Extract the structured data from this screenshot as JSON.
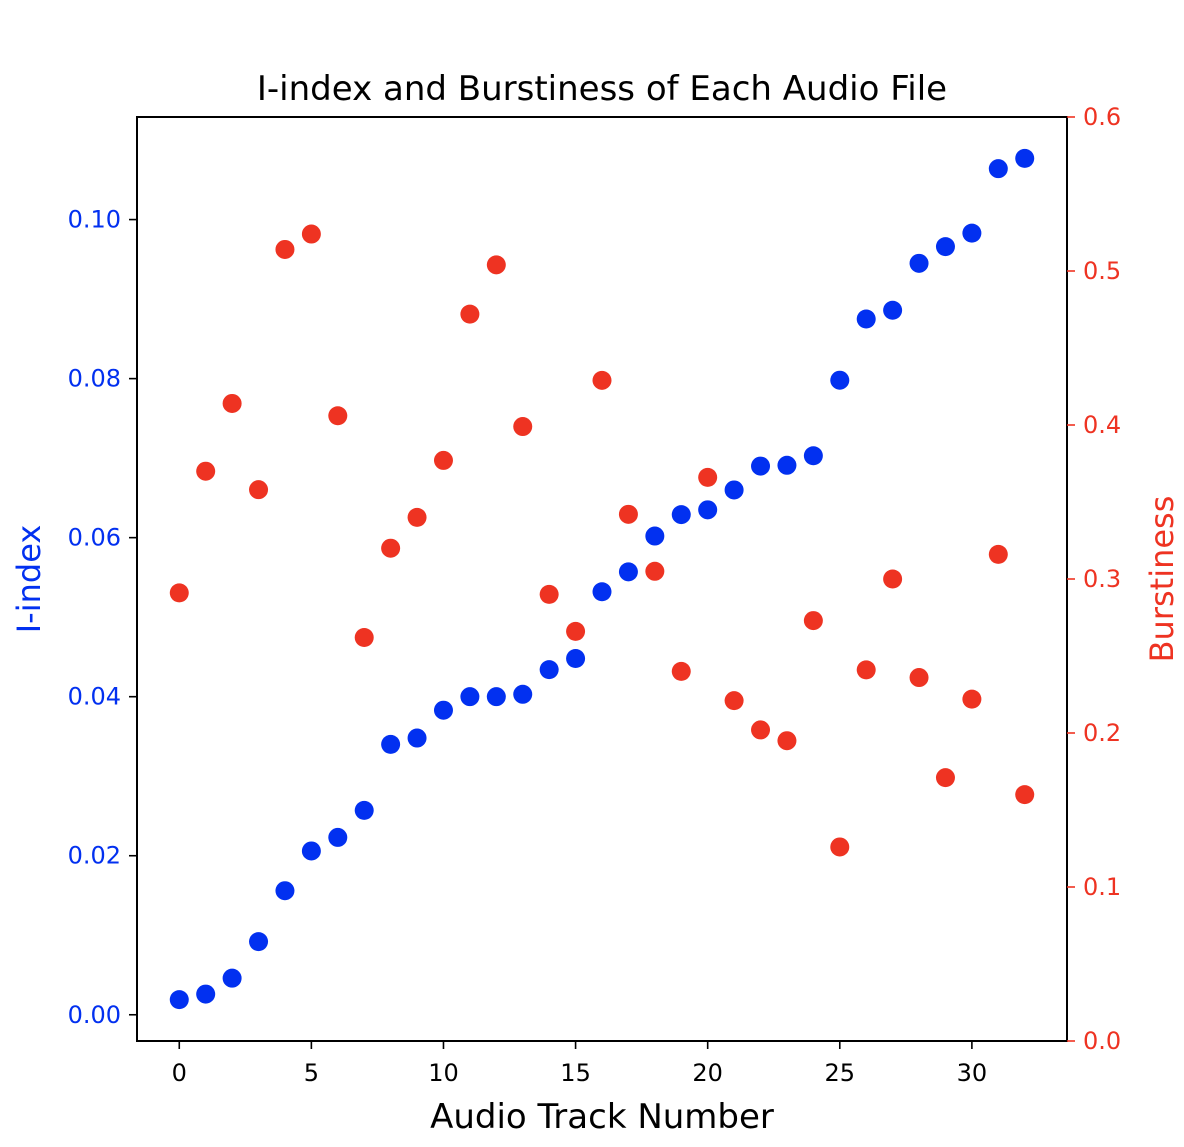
{
  "chart_data": {
    "type": "scatter",
    "title": "I-index and Burstiness of Each Audio File",
    "xlabel": "Audio Track Number",
    "x_ticks": [
      0,
      5,
      10,
      15,
      20,
      25,
      30
    ],
    "xlim": [
      -1.6,
      33.6
    ],
    "y_left": {
      "label": "I-index",
      "color": "#0230F0",
      "ylim": [
        -0.0033,
        0.1129
      ],
      "ticks": [
        "0.00",
        "0.02",
        "0.04",
        "0.06",
        "0.08",
        "0.10"
      ]
    },
    "y_right": {
      "label": "Burstiness",
      "color": "#EE3322",
      "ylim": [
        0.0,
        0.6
      ],
      "ticks": [
        "0.0",
        "0.1",
        "0.2",
        "0.3",
        "0.4",
        "0.5",
        "0.6"
      ]
    },
    "series": [
      {
        "name": "I-index",
        "axis": "left",
        "color": "#0230F0",
        "x": [
          0,
          1,
          2,
          3,
          4,
          5,
          6,
          7,
          8,
          9,
          10,
          11,
          12,
          13,
          14,
          15,
          16,
          17,
          18,
          19,
          20,
          21,
          22,
          23,
          24,
          25,
          26,
          27,
          28,
          29,
          30,
          31,
          32
        ],
        "values": [
          0.0019,
          0.0026,
          0.0046,
          0.0092,
          0.0156,
          0.0206,
          0.0223,
          0.0257,
          0.034,
          0.0348,
          0.0383,
          0.04,
          0.04,
          0.0403,
          0.0434,
          0.0448,
          0.0532,
          0.0557,
          0.0602,
          0.0629,
          0.0635,
          0.066,
          0.069,
          0.0691,
          0.0703,
          0.0798,
          0.0875,
          0.0886,
          0.0945,
          0.0966,
          0.0983,
          0.1064,
          0.1077
        ]
      },
      {
        "name": "Burstiness",
        "axis": "right",
        "color": "#EE3322",
        "x": [
          0,
          1,
          2,
          3,
          4,
          5,
          6,
          7,
          8,
          9,
          10,
          11,
          12,
          13,
          14,
          15,
          16,
          17,
          18,
          19,
          20,
          21,
          22,
          23,
          24,
          25,
          26,
          27,
          28,
          29,
          30,
          31,
          32
        ],
        "values": [
          0.291,
          0.37,
          0.414,
          0.358,
          0.514,
          0.524,
          0.406,
          0.262,
          0.32,
          0.34,
          0.377,
          0.472,
          0.504,
          0.399,
          0.29,
          0.266,
          0.429,
          0.342,
          0.305,
          0.24,
          0.366,
          0.221,
          0.202,
          0.195,
          0.273,
          0.126,
          0.241,
          0.3,
          0.236,
          0.171,
          0.222,
          0.316,
          0.16
        ]
      }
    ]
  }
}
